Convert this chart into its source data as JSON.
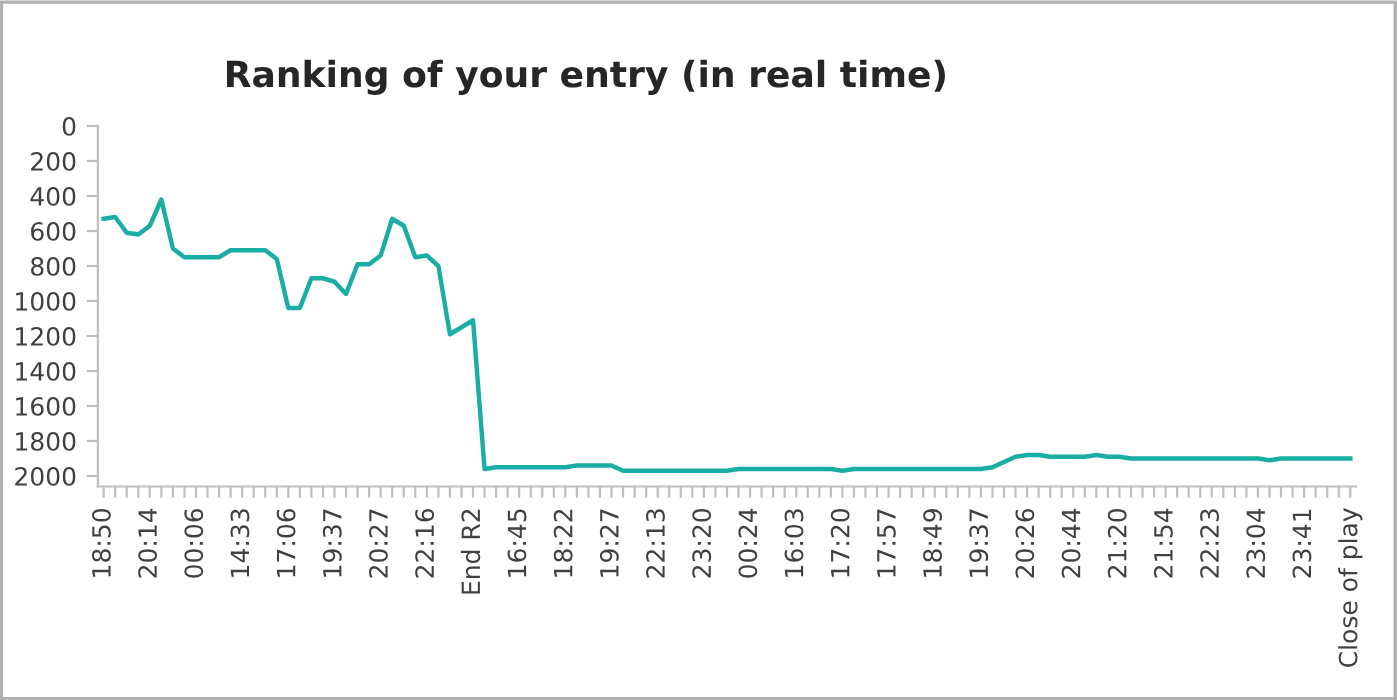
{
  "chart_data": {
    "type": "line",
    "title": "Ranking of your entry (in real time)",
    "categories": [
      "18:50",
      null,
      null,
      null,
      "20:14",
      null,
      null,
      null,
      "00:06",
      null,
      null,
      null,
      "14:33",
      null,
      null,
      null,
      "17:06",
      null,
      null,
      null,
      "19:37",
      null,
      null,
      null,
      "20:27",
      null,
      null,
      null,
      "22:16",
      null,
      null,
      null,
      "End R2",
      null,
      null,
      null,
      "16:45",
      null,
      null,
      null,
      "18:22",
      null,
      null,
      null,
      "19:27",
      null,
      null,
      null,
      "22:13",
      null,
      null,
      null,
      "23:20",
      null,
      null,
      null,
      "00:24",
      null,
      null,
      null,
      "16:03",
      null,
      null,
      null,
      "17:20",
      null,
      null,
      null,
      "17:57",
      null,
      null,
      null,
      "18:49",
      null,
      null,
      null,
      "19:37",
      null,
      null,
      null,
      "20:26",
      null,
      null,
      null,
      "20:44",
      null,
      null,
      null,
      "21:20",
      null,
      null,
      null,
      "21:54",
      null,
      null,
      null,
      "22:23",
      null,
      null,
      null,
      "23:04",
      null,
      null,
      null,
      "23:41",
      null,
      null,
      null,
      "Close of play"
    ],
    "series": [
      {
        "color": "#1aada6",
        "values": [
          530,
          520,
          610,
          620,
          570,
          420,
          700,
          750,
          750,
          750,
          750,
          710,
          710,
          710,
          710,
          760,
          1040,
          1040,
          870,
          870,
          890,
          960,
          790,
          790,
          740,
          530,
          570,
          750,
          740,
          800,
          1190,
          1150,
          1110,
          1960,
          1950,
          1950,
          1950,
          1950,
          1950,
          1950,
          1950,
          1940,
          1940,
          1940,
          1940,
          1970,
          1970,
          1970,
          1970,
          1970,
          1970,
          1970,
          1970,
          1970,
          1970,
          1960,
          1960,
          1960,
          1960,
          1960,
          1960,
          1960,
          1960,
          1960,
          1970,
          1960,
          1960,
          1960,
          1960,
          1960,
          1960,
          1960,
          1960,
          1960,
          1960,
          1960,
          1960,
          1950,
          1920,
          1890,
          1880,
          1880,
          1890,
          1890,
          1890,
          1890,
          1880,
          1890,
          1890,
          1900,
          1900,
          1900,
          1900,
          1900,
          1900,
          1900,
          1900,
          1900,
          1900,
          1900,
          1900,
          1910,
          1900,
          1900,
          1900,
          1900,
          1900,
          1900,
          1900
        ]
      }
    ],
    "ylim": [
      2060,
      0
    ],
    "yticks": [
      0,
      200,
      400,
      600,
      800,
      1000,
      1200,
      1400,
      1600,
      1800,
      2000
    ],
    "grid": false,
    "marker": "none",
    "line_style": "solid"
  }
}
